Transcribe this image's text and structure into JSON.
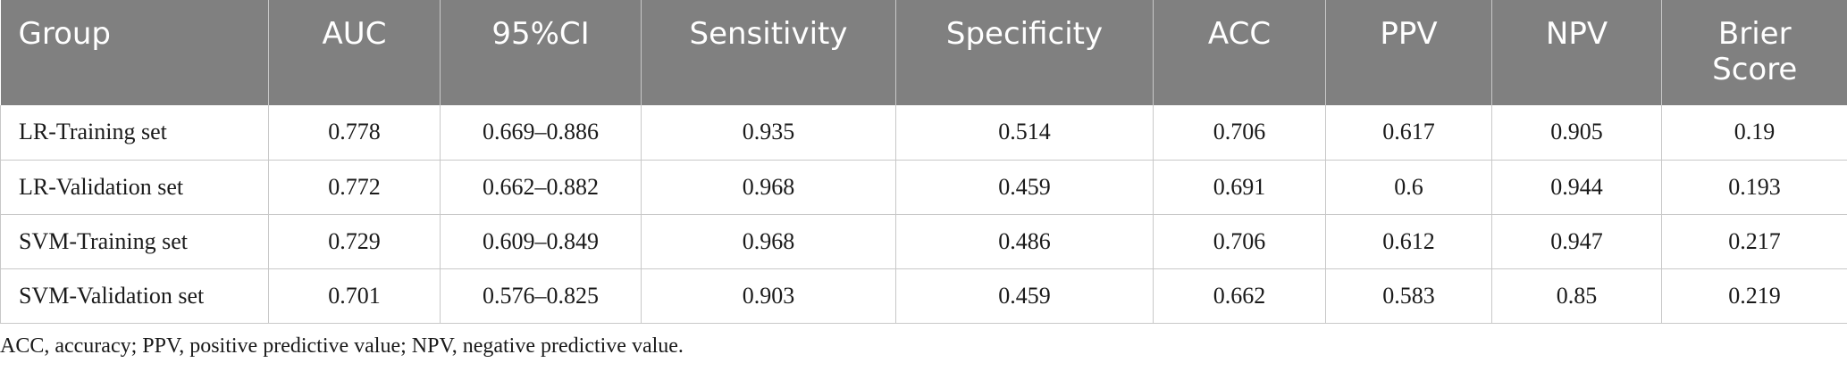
{
  "table": {
    "headers": [
      "Group",
      "AUC",
      "95%CI",
      "Sensitivity",
      "Specificity",
      "ACC",
      "PPV",
      "NPV",
      "Brier Score"
    ],
    "rows": [
      [
        "LR-Training set",
        "0.778",
        "0.669–0.886",
        "0.935",
        "0.514",
        "0.706",
        "0.617",
        "0.905",
        "0.19"
      ],
      [
        "LR-Validation set",
        "0.772",
        "0.662–0.882",
        "0.968",
        "0.459",
        "0.691",
        "0.6",
        "0.944",
        "0.193"
      ],
      [
        "SVM-Training set",
        "0.729",
        "0.609–0.849",
        "0.968",
        "0.486",
        "0.706",
        "0.612",
        "0.947",
        "0.217"
      ],
      [
        "SVM-Validation set",
        "0.701",
        "0.576–0.825",
        "0.903",
        "0.459",
        "0.662",
        "0.583",
        "0.85",
        "0.219"
      ]
    ]
  },
  "footnote": "ACC, accuracy; PPV, positive predictive value; NPV, negative predictive value.",
  "colors": {
    "header_background": "#808080",
    "header_text": "#ffffff",
    "grid_lines": "#c8c8c8"
  }
}
